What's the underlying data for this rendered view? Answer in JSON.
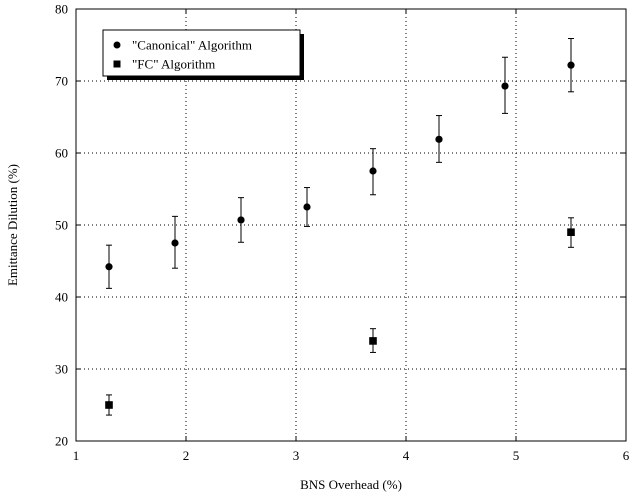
{
  "chart_data": {
    "type": "scatter",
    "xlabel": "BNS Overhead (%)",
    "ylabel": "Emittance Dilution (%)",
    "xlim": [
      1,
      6
    ],
    "ylim": [
      20,
      80
    ],
    "x_ticks": [
      1,
      2,
      3,
      4,
      5,
      6
    ],
    "y_ticks": [
      20,
      30,
      40,
      50,
      60,
      70,
      80
    ],
    "grid": true,
    "legend_placement": "top-left",
    "series": [
      {
        "name": "\"Canonical\" Algorithm",
        "marker": "circle",
        "color": "#000000",
        "points": [
          {
            "x": 1.3,
            "y": 44.2,
            "err_low": 41.2,
            "err_high": 47.2
          },
          {
            "x": 1.9,
            "y": 47.5,
            "err_low": 44.0,
            "err_high": 51.2
          },
          {
            "x": 2.5,
            "y": 50.7,
            "err_low": 47.6,
            "err_high": 53.8
          },
          {
            "x": 3.1,
            "y": 52.5,
            "err_low": 49.8,
            "err_high": 55.2
          },
          {
            "x": 3.7,
            "y": 57.5,
            "err_low": 54.2,
            "err_high": 60.6
          },
          {
            "x": 4.3,
            "y": 61.9,
            "err_low": 58.7,
            "err_high": 65.2
          },
          {
            "x": 4.9,
            "y": 69.3,
            "err_low": 65.5,
            "err_high": 73.3
          },
          {
            "x": 5.5,
            "y": 72.2,
            "err_low": 68.5,
            "err_high": 75.9
          }
        ]
      },
      {
        "name": "\"FC\" Algorithm",
        "marker": "square",
        "color": "#000000",
        "points": [
          {
            "x": 1.3,
            "y": 25.0,
            "err_low": 23.6,
            "err_high": 26.4
          },
          {
            "x": 3.7,
            "y": 33.9,
            "err_low": 32.3,
            "err_high": 35.6
          },
          {
            "x": 5.5,
            "y": 49.0,
            "err_low": 46.9,
            "err_high": 51.0
          }
        ]
      }
    ]
  }
}
